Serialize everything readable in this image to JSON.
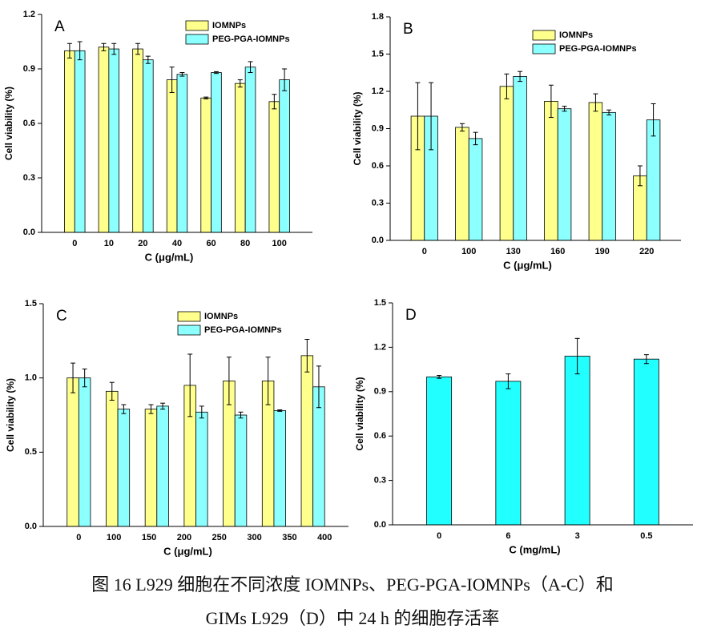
{
  "chart_data": [
    {
      "type": "bar",
      "label": "A",
      "xlabel": "C (μg/mL)",
      "ylabel": "Cell viability (%)",
      "categories": [
        "0",
        "10",
        "20",
        "40",
        "60",
        "80",
        "100"
      ],
      "series": [
        {
          "name": "IOMNPs",
          "color": "#ffff8c",
          "values": [
            1.0,
            1.02,
            1.01,
            0.84,
            0.74,
            0.82,
            0.72
          ],
          "errors": [
            0.04,
            0.02,
            0.03,
            0.07,
            0.005,
            0.02,
            0.04
          ]
        },
        {
          "name": "PEG-PGA-IOMNPs",
          "color": "#8cffff",
          "values": [
            1.0,
            1.01,
            0.95,
            0.87,
            0.88,
            0.91,
            0.84
          ],
          "errors": [
            0.05,
            0.03,
            0.02,
            0.01,
            0.005,
            0.03,
            0.06
          ]
        }
      ],
      "ylim": [
        0,
        1.2
      ],
      "yticks": [
        {
          "value": 0,
          "label": "0.0"
        },
        0.3,
        0.6,
        0.9,
        1.2
      ]
    },
    {
      "type": "bar",
      "label": "B",
      "xlabel": "C (μg/mL)",
      "ylabel": "Cell viability (%)",
      "categories": [
        "0",
        "100",
        "130",
        "160",
        "190",
        "220"
      ],
      "series": [
        {
          "name": "IOMNPs",
          "color": "#ffff8c",
          "values": [
            1.0,
            0.91,
            1.24,
            1.12,
            1.11,
            0.52
          ],
          "errors": [
            0.27,
            0.03,
            0.1,
            0.13,
            0.07,
            0.08
          ]
        },
        {
          "name": "PEG-PGA-IOMNPs",
          "color": "#8cffff",
          "values": [
            1.0,
            0.82,
            1.32,
            1.06,
            1.03,
            0.97
          ],
          "errors": [
            0.27,
            0.05,
            0.04,
            0.02,
            0.02,
            0.13
          ]
        }
      ],
      "ylim": [
        0,
        1.8
      ],
      "yticks": [
        {
          "value": 0,
          "label": "0.0"
        },
        0.3,
        0.6,
        0.9,
        1.2,
        1.5,
        1.8
      ]
    },
    {
      "type": "bar",
      "label": "C",
      "xlabel": "C (μg/mL)",
      "ylabel": "Cell viability (%)",
      "xtick_labels": [
        "0",
        "100",
        "150",
        "200",
        "250",
        "300",
        "350",
        "400"
      ],
      "series": [
        {
          "name": "IOMNPs",
          "color": "#ffff8c",
          "values": [
            1.0,
            0.91,
            0.79,
            0.95,
            0.98,
            0.98,
            1.15
          ],
          "errors": [
            0.1,
            0.06,
            0.03,
            0.21,
            0.16,
            0.16,
            0.11
          ]
        },
        {
          "name": "PEG-PGA-IOMNPs",
          "color": "#8cffff",
          "values": [
            1.0,
            0.79,
            0.81,
            0.77,
            0.75,
            0.78,
            0.94
          ],
          "errors": [
            0.06,
            0.03,
            0.02,
            0.04,
            0.02,
            0.005,
            0.14
          ]
        }
      ],
      "ylim": [
        0,
        1.5
      ],
      "yticks": [
        {
          "value": 0,
          "label": "0.0"
        },
        0.5,
        {
          "value": 1,
          "label": "1.0"
        },
        1.5
      ]
    },
    {
      "type": "bar",
      "label": "D",
      "xlabel": "C (mg/mL)",
      "ylabel": "Cell viability (%)",
      "categories": [
        "0",
        "6",
        "3",
        "0.5"
      ],
      "series": [
        {
          "color": "#22ffff",
          "values": [
            1.0,
            0.97,
            1.14,
            1.12
          ],
          "errors": [
            0.01,
            0.05,
            0.12,
            0.03
          ]
        }
      ],
      "ylim": [
        0,
        1.5
      ],
      "yticks": [
        {
          "value": 0,
          "label": "0.0"
        },
        0.3,
        0.6,
        0.9,
        1.2,
        1.5
      ]
    }
  ],
  "caption": [
    "图 16 L929 细胞在不同浓度 IOMNPs、PEG-PGA-IOMNPs（A-C）和",
    "GIMs L929（D）中 24 h 的细胞存活率"
  ]
}
